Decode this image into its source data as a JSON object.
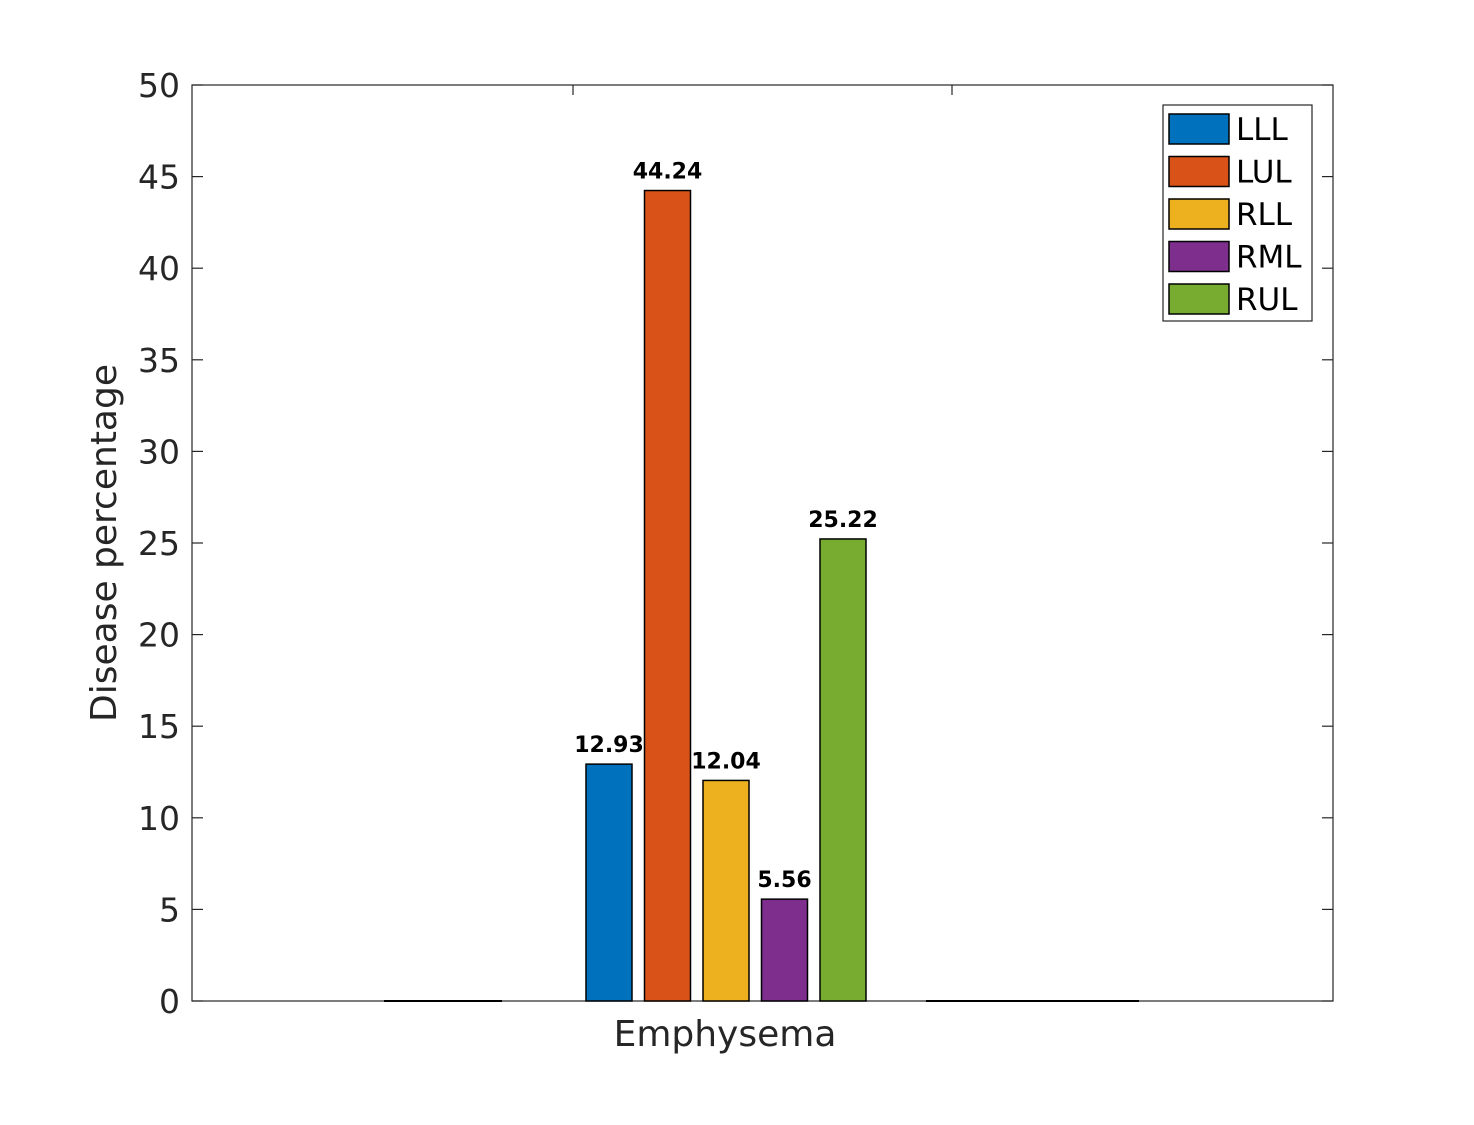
{
  "chart_data": {
    "type": "bar",
    "categories": [
      "Emphysema"
    ],
    "series": [
      {
        "name": "LLL",
        "values": [
          12.93
        ],
        "color": "#0072BD"
      },
      {
        "name": "LUL",
        "values": [
          44.24
        ],
        "color": "#D95319"
      },
      {
        "name": "RLL",
        "values": [
          12.04
        ],
        "color": "#EDB120"
      },
      {
        "name": "RML",
        "values": [
          5.56
        ],
        "color": "#7E2F8E"
      },
      {
        "name": "RUL",
        "values": [
          25.22
        ],
        "color": "#77AC30"
      }
    ],
    "data_labels": [
      "12.93",
      "44.24",
      "12.04",
      "5.56",
      "25.22"
    ],
    "title": "",
    "xlabel": "",
    "ylabel": "Disease percentage",
    "ylim": [
      0,
      50
    ],
    "yticks": [
      0,
      5,
      10,
      15,
      20,
      25,
      30,
      35,
      40,
      45,
      50
    ],
    "ytick_labels": [
      "0",
      "5",
      "10",
      "15",
      "20",
      "25",
      "30",
      "35",
      "40",
      "45",
      "50"
    ],
    "xtick_labels": [
      "Emphysema"
    ],
    "grid": false,
    "legend_position": "top-right"
  }
}
